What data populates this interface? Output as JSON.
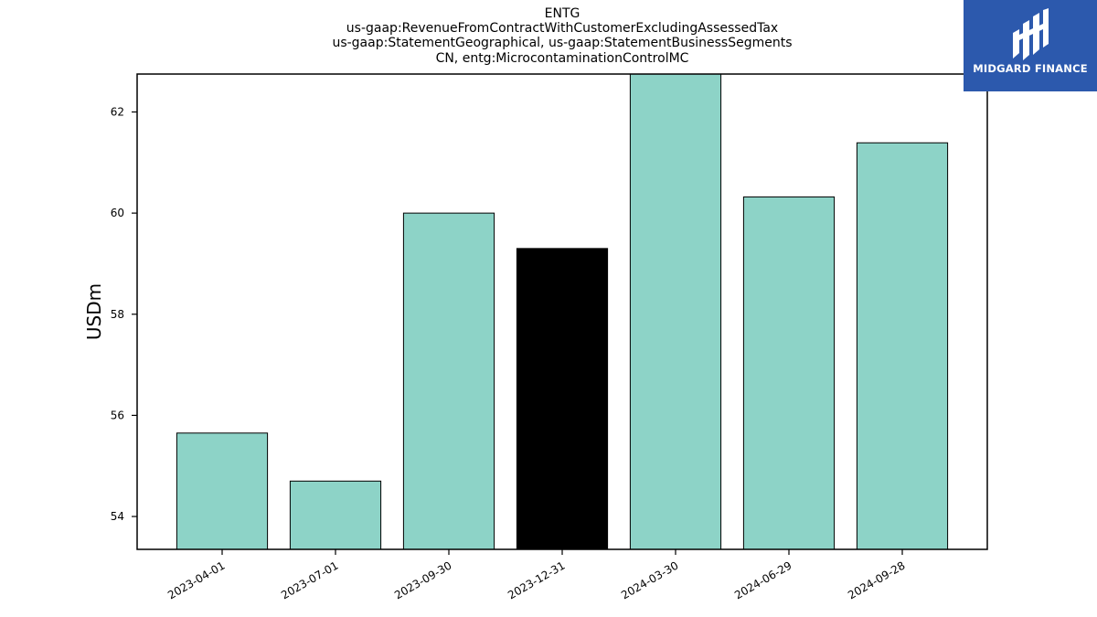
{
  "chart_data": {
    "type": "bar",
    "title_lines": [
      "ENTG",
      "us-gaap:RevenueFromContractWithCustomerExcludingAssessedTax",
      "us-gaap:StatementGeographical, us-gaap:StatementBusinessSegments",
      "CN, entg:MicrocontaminationControlMC"
    ],
    "xlabel": "",
    "ylabel": "USDm",
    "categories": [
      "2023-04-01",
      "2023-07-01",
      "2023-09-30",
      "2023-12-31",
      "2024-03-30",
      "2024-06-29",
      "2024-09-28"
    ],
    "values": [
      55.65,
      54.7,
      60.0,
      59.3,
      62.75,
      60.32,
      61.39
    ],
    "highlight_index": 3,
    "ylim": [
      53.35,
      62.75
    ],
    "yticks": [
      54,
      56,
      58,
      60,
      62
    ],
    "colors": {
      "bar": "#8dd3c7",
      "highlight": "#000000",
      "edge": "#000000"
    },
    "grid": false,
    "legend": "none"
  },
  "logo": {
    "text": "MIDGARD FINANCE",
    "background": "#2c59ad",
    "icon": "midgard-m-logo-icon"
  }
}
